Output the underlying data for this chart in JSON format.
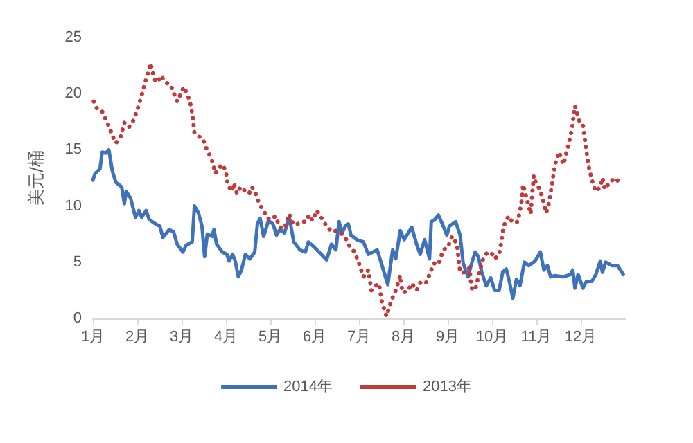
{
  "chart_data": {
    "type": "line",
    "ylabel": "美元/桶",
    "xlim": [
      1,
      13
    ],
    "xticks": [
      {
        "value": 1,
        "label": "1月"
      },
      {
        "value": 2,
        "label": "2月"
      },
      {
        "value": 3,
        "label": "3月"
      },
      {
        "value": 4,
        "label": "4月"
      },
      {
        "value": 5,
        "label": "5月"
      },
      {
        "value": 6,
        "label": "6月"
      },
      {
        "value": 7,
        "label": "7月"
      },
      {
        "value": 8,
        "label": "8月"
      },
      {
        "value": 9,
        "label": "9月"
      },
      {
        "value": 10,
        "label": "10月"
      },
      {
        "value": 11,
        "label": "11月"
      },
      {
        "value": 12,
        "label": "12月"
      }
    ],
    "ylim": [
      0,
      25
    ],
    "yticks": [
      0,
      5,
      10,
      15,
      20,
      25
    ],
    "grid": false,
    "legend": "bottom",
    "marker": "none",
    "series": [
      {
        "name": "2014年",
        "color": "#3f72b8",
        "line_style": "solid",
        "x": [
          1.0,
          1.05,
          1.16,
          1.21,
          1.29,
          1.36,
          1.44,
          1.52,
          1.65,
          1.71,
          1.75,
          1.85,
          1.96,
          2.04,
          2.1,
          2.2,
          2.27,
          2.41,
          2.51,
          2.58,
          2.72,
          2.82,
          2.9,
          3.03,
          3.1,
          3.24,
          3.29,
          3.38,
          3.46,
          3.52,
          3.58,
          3.69,
          3.73,
          3.79,
          3.92,
          4.02,
          4.07,
          4.15,
          4.21,
          4.28,
          4.35,
          4.44,
          4.54,
          4.65,
          4.71,
          4.77,
          4.85,
          4.96,
          5.06,
          5.14,
          5.22,
          5.32,
          5.43,
          5.53,
          5.67,
          5.79,
          5.86,
          6.0,
          6.1,
          6.27,
          6.38,
          6.48,
          6.55,
          6.62,
          6.69,
          6.76,
          6.82,
          6.95,
          7.1,
          7.21,
          7.31,
          7.41,
          7.52,
          7.65,
          7.76,
          7.83,
          7.93,
          8.02,
          8.11,
          8.19,
          8.3,
          8.38,
          8.48,
          8.59,
          8.63,
          8.71,
          8.79,
          8.9,
          8.98,
          9.04,
          9.18,
          9.28,
          9.35,
          9.46,
          9.54,
          9.62,
          9.69,
          9.77,
          9.87,
          9.97,
          10.06,
          10.16,
          10.24,
          10.32,
          10.39,
          10.47,
          10.55,
          10.63,
          10.73,
          10.83,
          10.97,
          11.09,
          11.17,
          11.25,
          11.32,
          11.42,
          11.61,
          11.77,
          11.82,
          11.87,
          11.94,
          12.05,
          12.13,
          12.25,
          12.34,
          12.44,
          12.49,
          12.56,
          12.7,
          12.83,
          12.96
        ],
        "values": [
          12.3,
          12.9,
          13.3,
          14.8,
          14.7,
          15,
          13.1,
          12.1,
          11.7,
          10.2,
          11.3,
          10.7,
          9,
          9.6,
          9,
          9.6,
          8.8,
          8.4,
          8.2,
          7.2,
          7.9,
          7.7,
          6.6,
          5.9,
          6.5,
          6.8,
          10,
          9.4,
          8.2,
          5.5,
          7.5,
          7.3,
          7.9,
          6.6,
          5.9,
          5.7,
          5.1,
          5.7,
          5.1,
          3.7,
          4.3,
          5.7,
          5.3,
          5.9,
          8.4,
          8.9,
          7.3,
          8.7,
          8.4,
          7.4,
          7.9,
          7.6,
          9,
          6.8,
          6.1,
          5.9,
          6.8,
          6.3,
          5.9,
          5.2,
          6.6,
          6.1,
          8.6,
          7.6,
          8.2,
          8.4,
          7.4,
          7,
          6.8,
          5.7,
          5.9,
          6.1,
          4.7,
          3,
          6.1,
          5.3,
          7.8,
          7,
          7.6,
          8.1,
          6.6,
          5.7,
          7,
          5.3,
          8.6,
          8.8,
          9.2,
          8.2,
          7.4,
          8.2,
          8.6,
          7.4,
          4.9,
          3.7,
          4.9,
          5.9,
          5.5,
          4.1,
          2.9,
          3.6,
          2.5,
          2.5,
          4.1,
          4.4,
          3.3,
          1.8,
          3.5,
          2.9,
          5,
          4.7,
          5.1,
          5.9,
          4.3,
          4.7,
          3.7,
          3.8,
          3.7,
          3.9,
          4.3,
          2.7,
          3.9,
          2.7,
          3.3,
          3.3,
          3.9,
          5.1,
          4.1,
          5,
          4.7,
          4.7,
          3.9
        ]
      },
      {
        "name": "2013年",
        "color": "#c0393b",
        "line_style": "dotted",
        "x": [
          1.02,
          1.1,
          1.21,
          1.29,
          1.36,
          1.47,
          1.52,
          1.63,
          1.71,
          1.81,
          1.89,
          1.99,
          2.09,
          2.2,
          2.25,
          2.3,
          2.38,
          2.46,
          2.54,
          2.63,
          2.75,
          2.82,
          2.9,
          2.96,
          3.05,
          3.11,
          3.19,
          3.25,
          3.29,
          3.38,
          3.48,
          3.55,
          3.6,
          3.69,
          3.76,
          3.83,
          3.92,
          4.0,
          4.04,
          4.13,
          4.18,
          4.25,
          4.33,
          4.44,
          4.52,
          4.59,
          4.67,
          4.75,
          4.85,
          4.94,
          5.04,
          5.11,
          5.22,
          5.32,
          5.43,
          5.51,
          5.58,
          5.69,
          5.79,
          5.88,
          5.95,
          6.05,
          6.24,
          6.38,
          6.48,
          6.59,
          6.69,
          6.79,
          6.9,
          7.0,
          7.1,
          7.21,
          7.28,
          7.34,
          7.45,
          7.52,
          7.62,
          7.73,
          7.83,
          7.93,
          7.98,
          8.09,
          8.19,
          8.3,
          8.4,
          8.52,
          8.61,
          8.69,
          8.79,
          8.9,
          9.0,
          9.1,
          9.21,
          9.28,
          9.38,
          9.49,
          9.54,
          9.62,
          9.69,
          9.8,
          9.9,
          10.01,
          10.06,
          10.16,
          10.21,
          10.26,
          10.37,
          10.47,
          10.58,
          10.66,
          10.7,
          10.78,
          10.87,
          10.94,
          11.0,
          11.08,
          11.15,
          11.22,
          11.28,
          11.35,
          11.42,
          11.51,
          11.61,
          11.72,
          11.8,
          11.87,
          11.98,
          12.05,
          12.11,
          12.18,
          12.23,
          12.28,
          12.34,
          12.44,
          12.49,
          12.54,
          12.65,
          12.78,
          12.91
        ],
        "values": [
          19.3,
          18.6,
          18.4,
          17.7,
          17.1,
          16,
          15.6,
          16.2,
          17.4,
          17,
          17.4,
          18.4,
          19.7,
          21.3,
          21.9,
          22.7,
          21.3,
          21,
          21.6,
          21,
          20.8,
          20.1,
          19.3,
          19.8,
          20.6,
          20.1,
          19.3,
          18,
          16.5,
          16.2,
          16,
          15.2,
          14.8,
          14,
          12.9,
          13.3,
          13.7,
          13.1,
          11.9,
          11.3,
          12,
          11.1,
          11.7,
          11.3,
          11.1,
          11.7,
          11.1,
          10.2,
          9.6,
          8.9,
          8.8,
          9.1,
          8.1,
          8,
          9.3,
          8.4,
          8.3,
          8.6,
          8.6,
          9.2,
          8.7,
          9.6,
          8.4,
          7.7,
          7.8,
          7.6,
          7.2,
          6.4,
          5.9,
          4.9,
          3.7,
          4.3,
          2.5,
          2.8,
          3.1,
          1.4,
          0.2,
          1.6,
          2.5,
          3.8,
          2.3,
          2.4,
          3.1,
          2.5,
          3.3,
          3.2,
          4.1,
          4.9,
          4.8,
          6.1,
          6.3,
          7.3,
          6.6,
          4.1,
          4.1,
          4.5,
          2.7,
          2.5,
          3.7,
          5.3,
          5.9,
          5.7,
          5.3,
          5.7,
          6.8,
          8.2,
          9.1,
          8.5,
          8.6,
          10.2,
          11.9,
          10.7,
          9.3,
          12.7,
          11.9,
          11.5,
          10.5,
          9.4,
          10.2,
          11.9,
          13.7,
          14.8,
          13.7,
          15.4,
          16.8,
          18.9,
          17.4,
          17.2,
          15.4,
          13.5,
          12.7,
          11.9,
          11.3,
          11.7,
          12.5,
          11.5,
          12.1,
          12.5,
          11.9
        ]
      }
    ]
  }
}
